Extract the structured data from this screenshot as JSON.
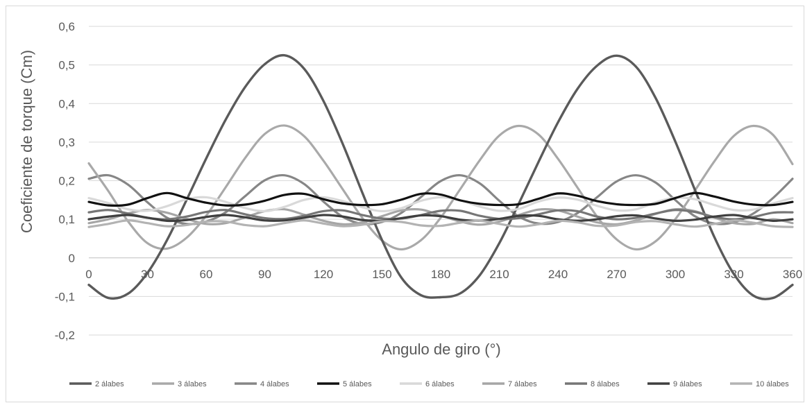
{
  "chart_data": {
    "type": "line",
    "title": "",
    "xlabel": "Angulo de giro (°)",
    "ylabel": "Coeficiente de torque (Cm)",
    "xlim": [
      0,
      360
    ],
    "ylim": [
      -0.2,
      0.6
    ],
    "x_ticks": [
      0,
      30,
      60,
      90,
      120,
      150,
      180,
      210,
      240,
      270,
      300,
      330,
      360
    ],
    "x_tick_labels": [
      "0",
      "30",
      "60",
      "90",
      "120",
      "150",
      "180",
      "210",
      "240",
      "270",
      "300",
      "330",
      "360"
    ],
    "y_ticks": [
      -0.2,
      -0.1,
      0,
      0.1,
      0.2,
      0.3,
      0.4,
      0.5,
      0.6
    ],
    "y_tick_labels": [
      "-0,2",
      "-0,1",
      "0",
      "0,1",
      "0,2",
      "0,3",
      "0,4",
      "0,5",
      "0,6"
    ],
    "grid": "horizontal",
    "legend_position": "bottom",
    "x": [
      0,
      10,
      20,
      30,
      40,
      50,
      60,
      70,
      80,
      90,
      100,
      110,
      120,
      130,
      140,
      150,
      160,
      170,
      180,
      190,
      200,
      210,
      220,
      230,
      240,
      250,
      260,
      270,
      280,
      290,
      300,
      310,
      320,
      330,
      340,
      350,
      360
    ],
    "series": [
      {
        "name": "2 álabes",
        "color": "#5a5a5a",
        "width": 3.4,
        "values": [
          -0.07,
          -0.104,
          -0.093,
          -0.039,
          0.046,
          0.15,
          0.257,
          0.358,
          0.443,
          0.502,
          0.525,
          0.491,
          0.407,
          0.294,
          0.168,
          0.046,
          -0.052,
          -0.097,
          -0.102,
          -0.092,
          -0.045,
          0.038,
          0.141,
          0.248,
          0.351,
          0.438,
          0.498,
          0.524,
          0.495,
          0.414,
          0.302,
          0.177,
          0.054,
          -0.042,
          -0.098,
          -0.104,
          -0.07
        ]
      },
      {
        "name": "3 álabes",
        "color": "#a9a9a9",
        "width": 3.2,
        "values": [
          0.245,
          0.173,
          0.095,
          0.038,
          0.024,
          0.052,
          0.109,
          0.183,
          0.259,
          0.321,
          0.343,
          0.316,
          0.252,
          0.177,
          0.103,
          0.045,
          0.022,
          0.046,
          0.104,
          0.178,
          0.253,
          0.317,
          0.342,
          0.32,
          0.257,
          0.182,
          0.107,
          0.048,
          0.022,
          0.043,
          0.1,
          0.174,
          0.25,
          0.316,
          0.342,
          0.319,
          0.243
        ]
      },
      {
        "name": "4 álabes",
        "color": "#868686",
        "width": 3.2,
        "values": [
          0.205,
          0.214,
          0.19,
          0.144,
          0.104,
          0.088,
          0.094,
          0.118,
          0.16,
          0.201,
          0.214,
          0.192,
          0.146,
          0.106,
          0.088,
          0.093,
          0.117,
          0.158,
          0.199,
          0.214,
          0.193,
          0.148,
          0.107,
          0.089,
          0.093,
          0.116,
          0.157,
          0.198,
          0.214,
          0.195,
          0.15,
          0.108,
          0.089,
          0.092,
          0.115,
          0.155,
          0.205
        ]
      },
      {
        "name": "5 álabes",
        "color": "#111111",
        "width": 3.2,
        "values": [
          0.145,
          0.136,
          0.138,
          0.155,
          0.168,
          0.155,
          0.143,
          0.136,
          0.138,
          0.148,
          0.163,
          0.166,
          0.152,
          0.141,
          0.137,
          0.139,
          0.151,
          0.166,
          0.164,
          0.149,
          0.14,
          0.137,
          0.139,
          0.153,
          0.167,
          0.161,
          0.147,
          0.139,
          0.137,
          0.14,
          0.155,
          0.168,
          0.159,
          0.146,
          0.138,
          0.137,
          0.145
        ]
      },
      {
        "name": "6 álabes",
        "color": "#d9d9d9",
        "width": 3.2,
        "values": [
          0.155,
          0.142,
          0.126,
          0.122,
          0.134,
          0.152,
          0.157,
          0.145,
          0.129,
          0.121,
          0.132,
          0.15,
          0.157,
          0.147,
          0.131,
          0.121,
          0.129,
          0.148,
          0.157,
          0.149,
          0.133,
          0.122,
          0.127,
          0.146,
          0.156,
          0.151,
          0.135,
          0.123,
          0.126,
          0.144,
          0.156,
          0.152,
          0.137,
          0.124,
          0.125,
          0.141,
          0.155
        ]
      },
      {
        "name": "7 álabes",
        "color": "#a6a6a6",
        "width": 3.2,
        "values": [
          0.09,
          0.1,
          0.115,
          0.124,
          0.117,
          0.101,
          0.088,
          0.09,
          0.105,
          0.121,
          0.126,
          0.112,
          0.096,
          0.087,
          0.092,
          0.108,
          0.123,
          0.125,
          0.11,
          0.094,
          0.086,
          0.094,
          0.111,
          0.125,
          0.123,
          0.107,
          0.092,
          0.087,
          0.097,
          0.114,
          0.126,
          0.121,
          0.104,
          0.09,
          0.088,
          0.1,
          0.09
        ]
      },
      {
        "name": "8 álabes",
        "color": "#767676",
        "width": 3.2,
        "values": [
          0.118,
          0.124,
          0.115,
          0.104,
          0.1,
          0.107,
          0.119,
          0.124,
          0.113,
          0.103,
          0.101,
          0.109,
          0.121,
          0.123,
          0.111,
          0.102,
          0.102,
          0.111,
          0.122,
          0.122,
          0.109,
          0.101,
          0.103,
          0.113,
          0.123,
          0.121,
          0.107,
          0.1,
          0.104,
          0.115,
          0.124,
          0.119,
          0.106,
          0.1,
          0.106,
          0.117,
          0.118
        ]
      },
      {
        "name": "9 álabes",
        "color": "#3f3f3f",
        "width": 3.2,
        "values": [
          0.1,
          0.107,
          0.111,
          0.104,
          0.096,
          0.098,
          0.106,
          0.111,
          0.105,
          0.097,
          0.097,
          0.104,
          0.111,
          0.107,
          0.098,
          0.096,
          0.103,
          0.11,
          0.108,
          0.099,
          0.096,
          0.101,
          0.109,
          0.109,
          0.1,
          0.096,
          0.1,
          0.108,
          0.11,
          0.102,
          0.096,
          0.099,
          0.107,
          0.111,
          0.103,
          0.096,
          0.1
        ]
      },
      {
        "name": "10 álabes",
        "color": "#b3b3b3",
        "width": 3.2,
        "values": [
          0.08,
          0.088,
          0.097,
          0.09,
          0.082,
          0.085,
          0.094,
          0.094,
          0.085,
          0.082,
          0.09,
          0.097,
          0.089,
          0.082,
          0.086,
          0.095,
          0.093,
          0.084,
          0.083,
          0.091,
          0.096,
          0.088,
          0.081,
          0.087,
          0.096,
          0.092,
          0.083,
          0.084,
          0.093,
          0.095,
          0.087,
          0.081,
          0.088,
          0.097,
          0.091,
          0.082,
          0.08
        ]
      }
    ]
  }
}
